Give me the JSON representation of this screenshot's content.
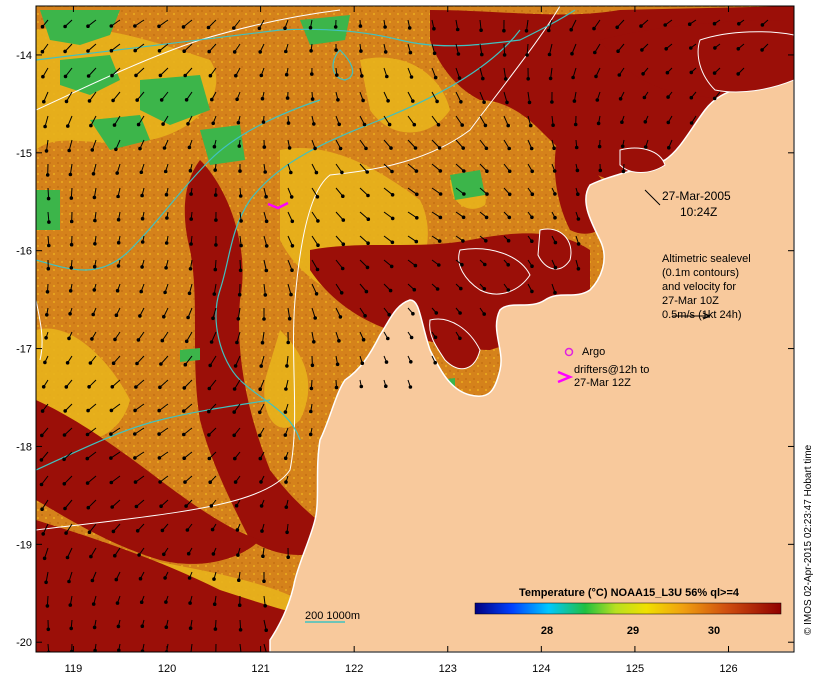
{
  "map": {
    "lon_ticks": [
      "119",
      "120",
      "121",
      "122",
      "123",
      "124",
      "125",
      "126"
    ],
    "lat_ticks": [
      "-14",
      "-15",
      "-16",
      "-17",
      "-18",
      "-19",
      "-20"
    ],
    "lon_range": [
      118.6,
      126.7
    ],
    "lat_range": [
      -20.1,
      -13.5
    ]
  },
  "annotations": {
    "date_line1": "27-Mar-2005",
    "date_line2": "10:24Z",
    "altimetry": [
      "Altimetric sealevel",
      "(0.1m contours)",
      "and velocity for",
      "27-Mar 10Z",
      "0.5m/s (1kt 24h)"
    ],
    "argo_label": "Argo",
    "drifters_line1": "drifters@12h to",
    "drifters_line2": "27-Mar 12Z",
    "isobath_label": "200  1000m"
  },
  "legend": {
    "title": "Temperature (°C) NOAA15_L3U 56% ql>=4",
    "ticks": [
      "28",
      "29",
      "30"
    ]
  },
  "credit": "© IMOS 02-Apr-2015 02:23:47 Hobart time",
  "colors": {
    "land": "#f8c99c",
    "coast": "#ffffff",
    "warm": "#9b0f08",
    "mid": "#d5821b",
    "cool": "#e8b31c",
    "green": "#3cb54a",
    "isobath": "#40c2c0",
    "argo": "#e020e0",
    "drifter": "#ff00ff"
  }
}
